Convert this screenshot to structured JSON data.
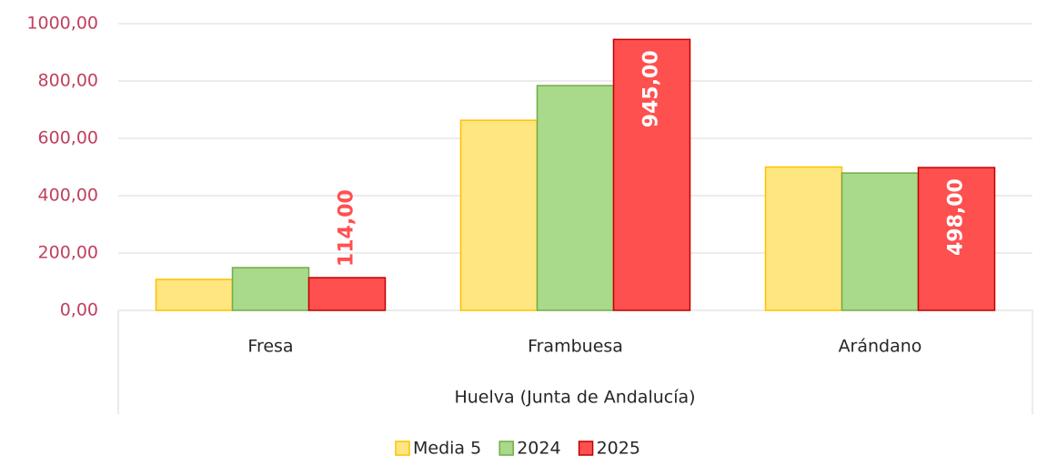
{
  "chart_data": {
    "type": "bar",
    "categories": [
      "Fresa",
      "Frambuesa",
      "Arándano"
    ],
    "group_label": "Huelva (Junta de Andalucía)",
    "series": [
      {
        "name": "Media 5",
        "color": "#FFE680",
        "border": "#FFC000",
        "values": [
          108,
          663,
          500
        ]
      },
      {
        "name": "2024",
        "color": "#A9D98A",
        "border": "#70AD47",
        "values": [
          149,
          784,
          479
        ]
      },
      {
        "name": "2025",
        "color": "#FF5050",
        "border": "#C00000",
        "values": [
          114,
          945,
          498
        ],
        "value_labels": [
          "114,00",
          "945,00",
          "498,00"
        ]
      }
    ],
    "ylim": [
      0,
      1000
    ],
    "yticks": [
      {
        "value": 0,
        "label": "0,00"
      },
      {
        "value": 200,
        "label": "200,00"
      },
      {
        "value": 400,
        "label": "400,00"
      },
      {
        "value": 600,
        "label": "600,00"
      },
      {
        "value": 800,
        "label": "800,00"
      },
      {
        "value": 1000,
        "label": "1000,00"
      }
    ],
    "grid": true,
    "legend": "bottom"
  }
}
